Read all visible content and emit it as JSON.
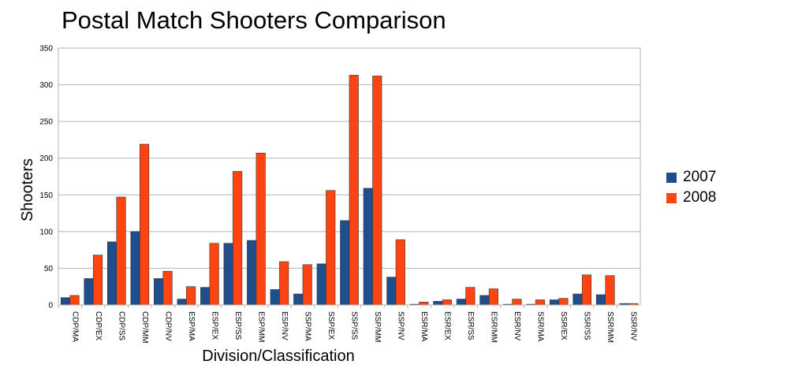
{
  "chart_data": {
    "type": "bar",
    "title": "Postal Match Shooters Comparison",
    "xlabel": "Division/Classification",
    "ylabel": "Shooters",
    "ylim": [
      0,
      350
    ],
    "yticks": [
      0,
      50,
      100,
      150,
      200,
      250,
      300,
      350
    ],
    "grid": true,
    "legend_position": "right",
    "categories": [
      "CDP/MA",
      "CDP/EX",
      "CDP/SS",
      "CDP/MM",
      "CDP/NV",
      "ESP/MA",
      "ESP/EX",
      "ESP/SS",
      "ESP/MM",
      "ESP/NV",
      "SSP/MA",
      "SSP/EX",
      "SSP/SS",
      "SSP/MM",
      "SSP/NV",
      "ESR/MA",
      "ESR/EX",
      "ESR/SS",
      "ESR/MM",
      "ESR/NV",
      "SSR/MA",
      "SSR/EX",
      "SSR/SS",
      "SSR/MM",
      "SSR/NV"
    ],
    "series": [
      {
        "name": "2007",
        "color": "#1f4e8c",
        "values": [
          10,
          36,
          86,
          100,
          36,
          8,
          24,
          84,
          88,
          21,
          15,
          56,
          115,
          159,
          38,
          1,
          5,
          8,
          13,
          1,
          1,
          7,
          15,
          14,
          2
        ]
      },
      {
        "name": "2008",
        "color": "#ff4411",
        "values": [
          13,
          68,
          147,
          219,
          46,
          25,
          84,
          182,
          207,
          59,
          55,
          156,
          313,
          312,
          89,
          4,
          7,
          24,
          22,
          8,
          7,
          9,
          41,
          40,
          2
        ]
      }
    ]
  }
}
